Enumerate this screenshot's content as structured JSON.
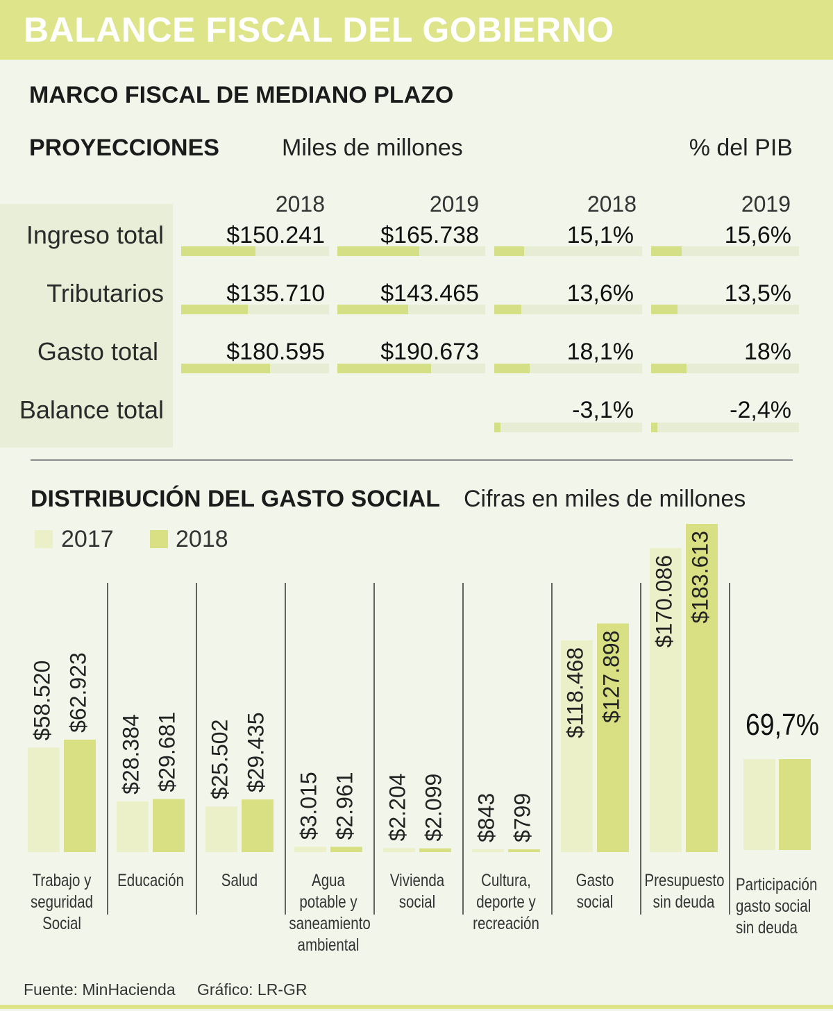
{
  "header": {
    "title": "BALANCE FISCAL DEL GOBIERNO"
  },
  "section1": {
    "title": "MARCO FISCAL DE MEDIANO PLAZO",
    "subtitle": "PROYECCIONES",
    "col_group_1": "Miles de millones",
    "col_group_2": "% del PIB",
    "years": [
      "2018",
      "2019",
      "2018",
      "2019"
    ],
    "rows": [
      {
        "label": "Ingreso total",
        "v2018": "$150.241",
        "v2019": "$165.738",
        "p2018": "15,1%",
        "p2019": "15,6%",
        "v2018_num": 150241,
        "v2019_num": 165738,
        "p2018_num": 15.1,
        "p2019_num": 15.6
      },
      {
        "label": "Tributarios",
        "v2018": "$135.710",
        "v2019": "$143.465",
        "p2018": "13,6%",
        "p2019": "13,5%",
        "v2018_num": 135710,
        "v2019_num": 143465,
        "p2018_num": 13.6,
        "p2019_num": 13.5
      },
      {
        "label": "Gasto total",
        "v2018": "$180.595",
        "v2019": "$190.673",
        "p2018": "18,1%",
        "p2019": "18%",
        "v2018_num": 180595,
        "v2019_num": 190673,
        "p2018_num": 18.1,
        "p2019_num": 18.0
      },
      {
        "label": "Balance total",
        "v2018": "",
        "v2019": "",
        "p2018": "-3,1%",
        "p2019": "-2,4%",
        "v2018_num": null,
        "v2019_num": null,
        "p2018_num": -3.1,
        "p2019_num": -2.4
      }
    ]
  },
  "section2": {
    "title": "DISTRIBUCIÓN DEL GASTO SOCIAL",
    "subtitle": "Cifras en miles de millones",
    "participation_value": "69,7%"
  },
  "chart_data": {
    "type": "bar",
    "title": "DISTRIBUCIÓN DEL GASTO SOCIAL",
    "subtitle": "Cifras en miles de millones",
    "legend": [
      "2017",
      "2018"
    ],
    "categories": [
      "Trabajo y seguridad Social",
      "Educación",
      "Salud",
      "Agua potable y saneamiento ambiental",
      "Vivienda social",
      "Cultura, deporte y recreación",
      "Gasto social",
      "Presupuesto sin deuda"
    ],
    "series": [
      {
        "name": "2017",
        "values": [
          58520,
          28384,
          25502,
          3015,
          2204,
          843,
          118468,
          170086
        ],
        "labels": [
          "$58.520",
          "$28.384",
          "$25.502",
          "$3.015",
          "$2.204",
          "$843",
          "$118.468",
          "$170.086"
        ]
      },
      {
        "name": "2018",
        "values": [
          62923,
          29681,
          29435,
          2961,
          2099,
          799,
          127898,
          183613
        ],
        "labels": [
          "$62.923",
          "$29.681",
          "$29.435",
          "$2.961",
          "$2.099",
          "$799",
          "$127.898",
          "$183.613"
        ]
      }
    ],
    "extra_category": "Participación gasto social sin deuda",
    "extra_value_label": "69,7%",
    "extra_value": 69.7,
    "ylim": [
      0,
      183613
    ]
  },
  "colors": {
    "c2017": "#ecf0c9",
    "c2018": "#d8e083",
    "header_bg": "#dde489",
    "track": "#e7edd4",
    "track_fill": "#d5df86"
  },
  "footer": {
    "source": "Fuente: MinHacienda",
    "credit": "Gráfico: LR-GR"
  }
}
